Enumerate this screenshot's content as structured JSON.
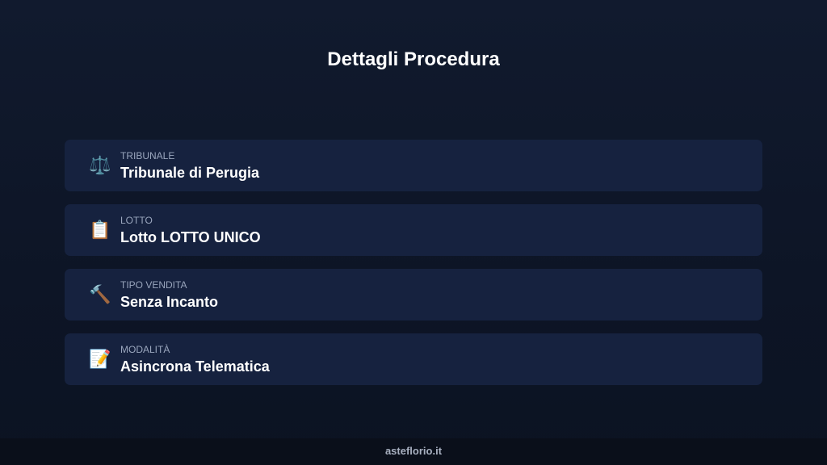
{
  "title": "Dettagli Procedura",
  "items": [
    {
      "icon": "scales-icon",
      "glyph": "⚖️",
      "label": "TRIBUNALE",
      "value": "Tribunale di Perugia"
    },
    {
      "icon": "clipboard-icon",
      "glyph": "📋",
      "label": "LOTTO",
      "value": "Lotto LOTTO UNICO"
    },
    {
      "icon": "hammer-icon",
      "glyph": "🔨",
      "label": "TIPO VENDITA",
      "value": "Senza Incanto"
    },
    {
      "icon": "memo-icon",
      "glyph": "📝",
      "label": "MODALITÀ",
      "value": "Asincrona Telematica"
    }
  ],
  "footer": "asteflorio.it"
}
